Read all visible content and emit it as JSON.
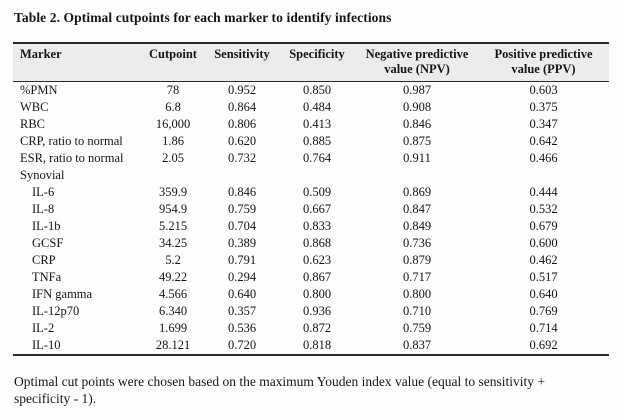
{
  "title": "Table 2. Optimal cutpoints for each marker to identify infections",
  "footnote": "Optimal cut points were chosen based on the maximum Youden index value (equal to sensitivity + specificity - 1).",
  "colors": {
    "page_bg": "#fdfdfd",
    "header_bg": "#ececec",
    "rule": "#2a2a2a",
    "text": "#151515"
  },
  "table": {
    "headers": [
      "Marker",
      "Cutpoint",
      "Sensitivity",
      "Specificity",
      "Negative predictive value (NPV)",
      "Positive predictive value (PPV)"
    ],
    "rows": [
      {
        "marker": "%PMN",
        "cutpoint": "78",
        "sensitivity": "0.952",
        "specificity": "0.850",
        "npv": "0.987",
        "ppv": "0.603"
      },
      {
        "marker": "WBC",
        "cutpoint": "6.8",
        "sensitivity": "0.864",
        "specificity": "0.484",
        "npv": "0.908",
        "ppv": "0.375"
      },
      {
        "marker": "RBC",
        "cutpoint": "16,000",
        "sensitivity": "0.806",
        "specificity": "0.413",
        "npv": "0.846",
        "ppv": "0.347"
      },
      {
        "marker": "CRP, ratio to normal",
        "cutpoint": "1.86",
        "sensitivity": "0.620",
        "specificity": "0.885",
        "npv": "0.875",
        "ppv": "0.642"
      },
      {
        "marker": "ESR, ratio to normal",
        "cutpoint": "2.05",
        "sensitivity": "0.732",
        "specificity": "0.764",
        "npv": "0.911",
        "ppv": "0.466"
      },
      {
        "marker": "Synovial",
        "section": true,
        "cutpoint": "",
        "sensitivity": "",
        "specificity": "",
        "npv": "",
        "ppv": ""
      },
      {
        "marker": "IL-6",
        "indent": true,
        "cutpoint": "359.9",
        "sensitivity": "0.846",
        "specificity": "0.509",
        "npv": "0.869",
        "ppv": "0.444"
      },
      {
        "marker": "IL-8",
        "indent": true,
        "cutpoint": "954.9",
        "sensitivity": "0.759",
        "specificity": "0.667",
        "npv": "0.847",
        "ppv": "0.532"
      },
      {
        "marker": "IL-1b",
        "indent": true,
        "cutpoint": "5.215",
        "sensitivity": "0.704",
        "specificity": "0.833",
        "npv": "0.849",
        "ppv": "0.679"
      },
      {
        "marker": "GCSF",
        "indent": true,
        "cutpoint": "34.25",
        "sensitivity": "0.389",
        "specificity": "0.868",
        "npv": "0.736",
        "ppv": "0.600"
      },
      {
        "marker": "CRP",
        "indent": true,
        "cutpoint": "5.2",
        "sensitivity": "0.791",
        "specificity": "0.623",
        "npv": "0.879",
        "ppv": "0.462"
      },
      {
        "marker": "TNFa",
        "indent": true,
        "cutpoint": "49.22",
        "sensitivity": "0.294",
        "specificity": "0.867",
        "npv": "0.717",
        "ppv": "0.517"
      },
      {
        "marker": "IFN gamma",
        "indent": true,
        "cutpoint": "4.566",
        "sensitivity": "0.640",
        "specificity": "0.800",
        "npv": "0.800",
        "ppv": "0.640"
      },
      {
        "marker": "IL-12p70",
        "indent": true,
        "cutpoint": "6.340",
        "sensitivity": "0.357",
        "specificity": "0.936",
        "npv": "0.710",
        "ppv": "0.769"
      },
      {
        "marker": "IL-2",
        "indent": true,
        "cutpoint": "1.699",
        "sensitivity": "0.536",
        "specificity": "0.872",
        "npv": "0.759",
        "ppv": "0.714"
      },
      {
        "marker": "IL-10",
        "indent": true,
        "cutpoint": "28.121",
        "sensitivity": "0.720",
        "specificity": "0.818",
        "npv": "0.837",
        "ppv": "0.692"
      }
    ]
  }
}
